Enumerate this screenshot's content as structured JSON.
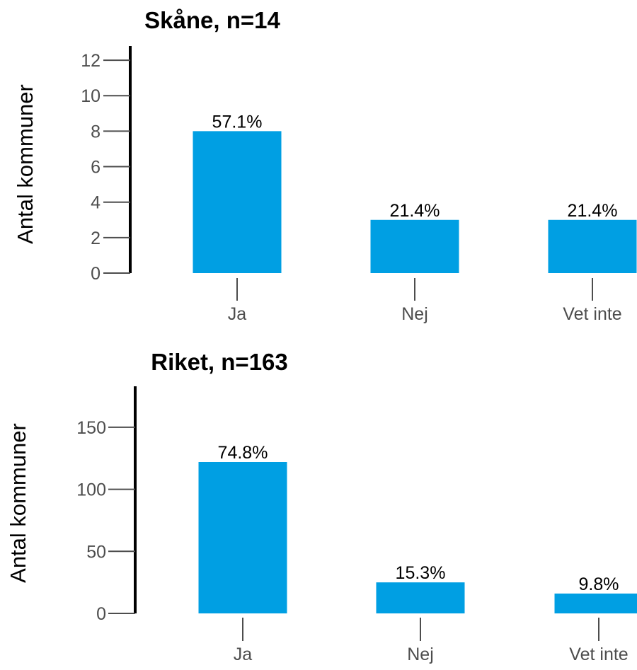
{
  "chart_data": [
    {
      "type": "bar",
      "title": "Skåne, n=14",
      "ylabel": "Antal kommuner",
      "xlabel": "",
      "categories": [
        "Ja",
        "Nej",
        "Vet inte"
      ],
      "values": [
        8,
        3,
        3
      ],
      "data_labels": [
        "57.1%",
        "21.4%",
        "21.4%"
      ],
      "yticks": [
        0,
        2,
        4,
        6,
        8,
        10,
        12
      ],
      "ylim": [
        0,
        12.8
      ],
      "bar_color": "#009fe3",
      "grid": false
    },
    {
      "type": "bar",
      "title": "Riket, n=163",
      "ylabel": "Antal kommuner",
      "xlabel": "",
      "categories": [
        "Ja",
        "Nej",
        "Vet inte"
      ],
      "values": [
        122,
        25,
        16
      ],
      "data_labels": [
        "74.8%",
        "15.3%",
        "9.8%"
      ],
      "yticks": [
        0,
        50,
        100,
        150
      ],
      "ylim": [
        0,
        183
      ],
      "bar_color": "#009fe3",
      "grid": false
    }
  ]
}
